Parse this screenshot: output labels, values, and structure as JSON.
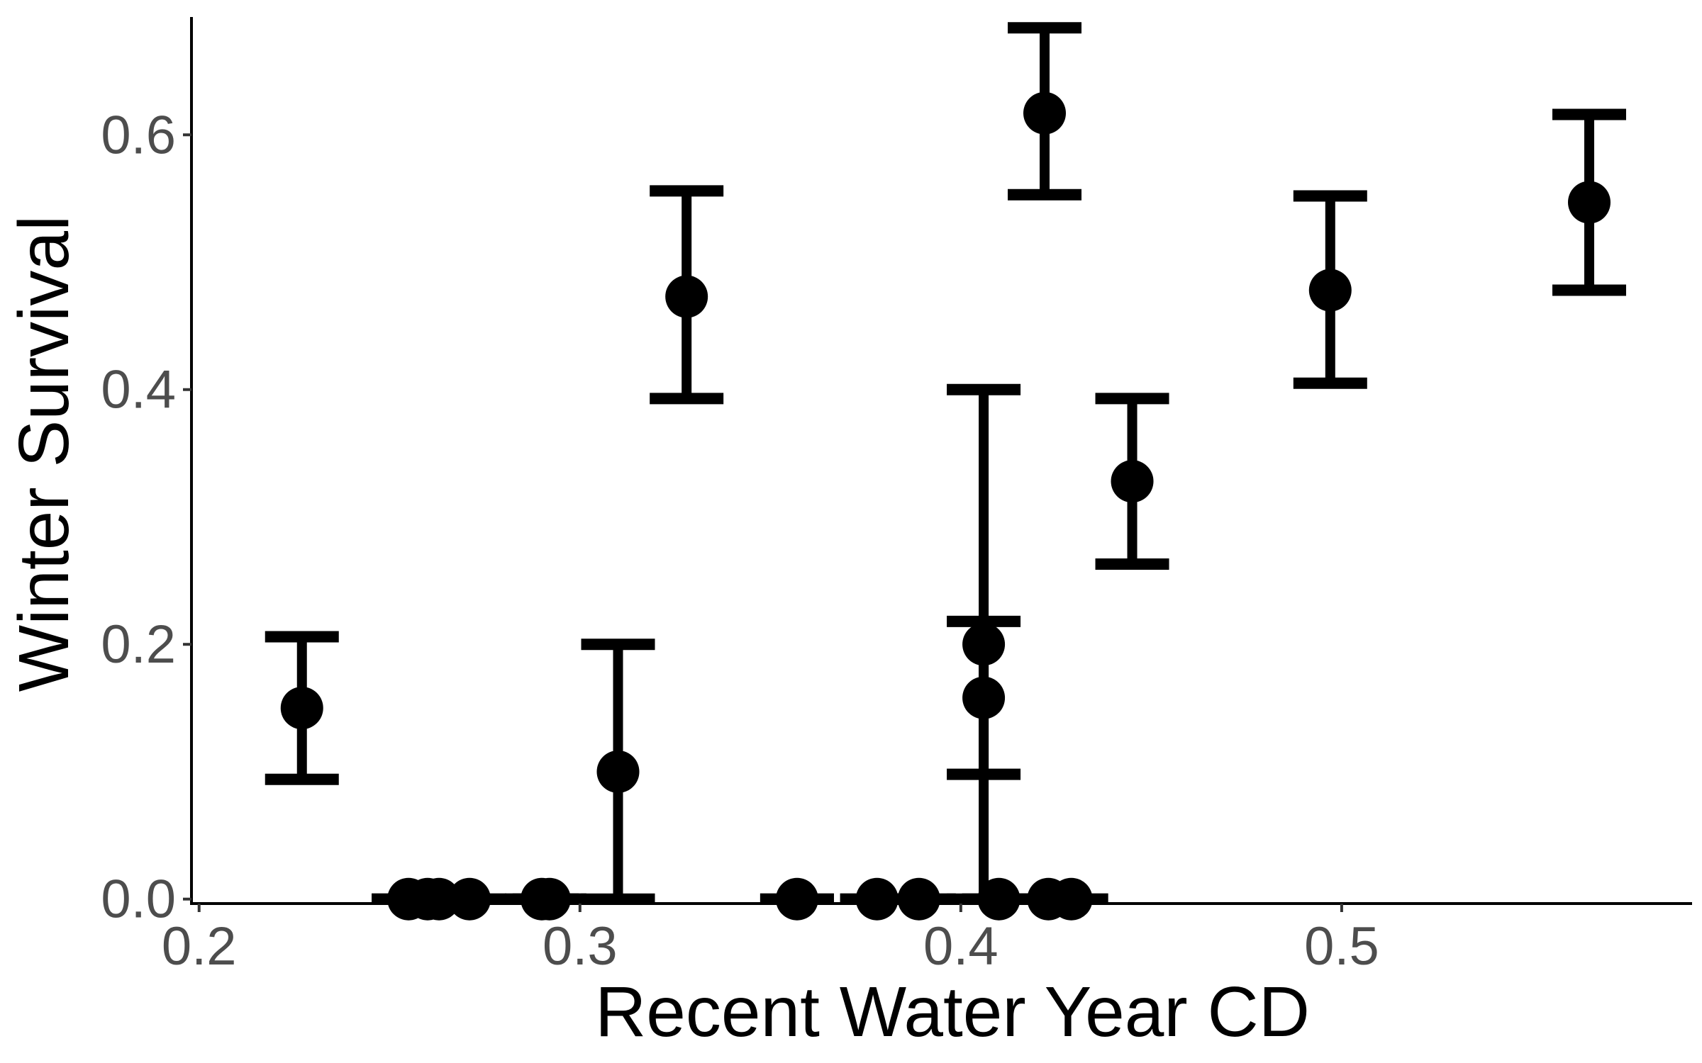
{
  "chart_data": {
    "type": "scatter",
    "title": "",
    "xlabel": "Recent Water Year CD",
    "ylabel": "Winter Survival",
    "xlim": [
      0.198,
      0.592
    ],
    "ylim": [
      -0.0035,
      0.6925
    ],
    "x_ticks": [
      0.2,
      0.3,
      0.4,
      0.5
    ],
    "x_tick_labels": [
      "0.2",
      "0.3",
      "0.4",
      "0.5"
    ],
    "y_ticks": [
      0.0,
      0.2,
      0.4,
      0.6
    ],
    "y_tick_labels": [
      "0.0",
      "0.2",
      "0.4",
      "0.6"
    ],
    "grid": false,
    "legend": "none",
    "color": "#000000",
    "points": [
      {
        "x": 0.227,
        "y": 0.15,
        "lo": 0.094,
        "hi": 0.206
      },
      {
        "x": 0.255,
        "y": 0.0,
        "lo": 0.0,
        "hi": 0.0
      },
      {
        "x": 0.26,
        "y": 0.0,
        "lo": 0.0,
        "hi": 0.0
      },
      {
        "x": 0.263,
        "y": 0.0,
        "lo": 0.0,
        "hi": 0.0
      },
      {
        "x": 0.271,
        "y": 0.0,
        "lo": 0.0,
        "hi": 0.0
      },
      {
        "x": 0.29,
        "y": 0.0,
        "lo": 0.0,
        "hi": 0.0
      },
      {
        "x": 0.292,
        "y": 0.0,
        "lo": 0.0,
        "hi": 0.0
      },
      {
        "x": 0.31,
        "y": 0.1,
        "lo": 0.0,
        "hi": 0.2
      },
      {
        "x": 0.328,
        "y": 0.473,
        "lo": 0.393,
        "hi": 0.556
      },
      {
        "x": 0.357,
        "y": 0.0,
        "lo": 0.0,
        "hi": 0.0
      },
      {
        "x": 0.378,
        "y": 0.0,
        "lo": 0.0,
        "hi": 0.0
      },
      {
        "x": 0.389,
        "y": 0.0,
        "lo": 0.0,
        "hi": 0.0
      },
      {
        "x": 0.406,
        "y": 0.2,
        "lo": 0.0,
        "hi": 0.4
      },
      {
        "x": 0.406,
        "y": 0.158,
        "lo": 0.098,
        "hi": 0.218
      },
      {
        "x": 0.41,
        "y": 0.0,
        "lo": 0.0,
        "hi": 0.0
      },
      {
        "x": 0.422,
        "y": 0.617,
        "lo": 0.553,
        "hi": 0.684
      },
      {
        "x": 0.423,
        "y": 0.0,
        "lo": 0.0,
        "hi": 0.0
      },
      {
        "x": 0.429,
        "y": 0.0,
        "lo": 0.0,
        "hi": 0.0
      },
      {
        "x": 0.445,
        "y": 0.328,
        "lo": 0.263,
        "hi": 0.393
      },
      {
        "x": 0.497,
        "y": 0.478,
        "lo": 0.405,
        "hi": 0.552
      },
      {
        "x": 0.565,
        "y": 0.547,
        "lo": 0.478,
        "hi": 0.616
      }
    ]
  }
}
